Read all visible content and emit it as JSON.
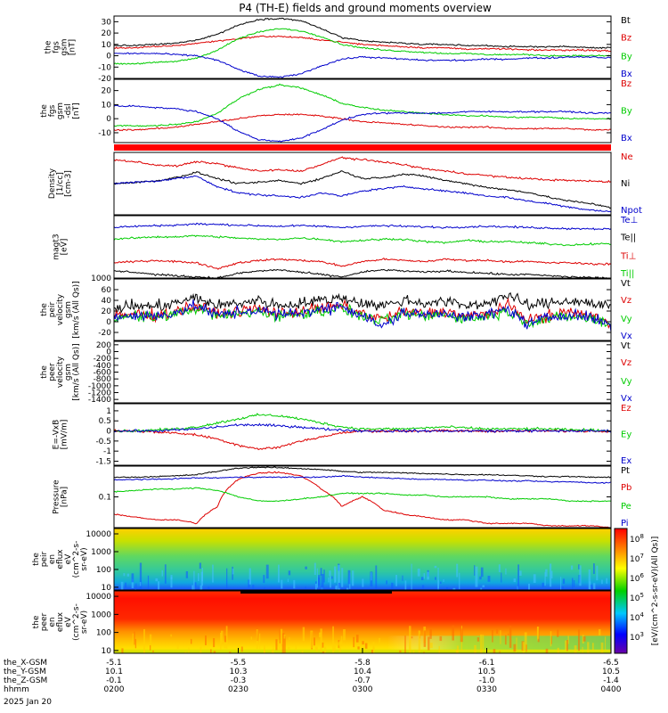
{
  "title": "P4 (TH-E) fields and ground moments overview",
  "panels": [
    {
      "id": "fgs-gsm",
      "ylabel_lines": [
        "the",
        "fgs",
        "gsm",
        "[nT]"
      ],
      "ylim": [
        -20,
        35
      ],
      "ticks": [
        -20,
        -10,
        0,
        10,
        20,
        30
      ],
      "series": [
        {
          "name": "Bt",
          "color": "#000000",
          "y": [
            9,
            9,
            10,
            11,
            14,
            19,
            27,
            32,
            33,
            31,
            24,
            16,
            13,
            12,
            11,
            10,
            10,
            9,
            9,
            8,
            8,
            8,
            8,
            7,
            7
          ]
        },
        {
          "name": "Bz",
          "color": "#dd0000",
          "y": [
            7,
            7,
            8,
            9,
            11,
            13,
            15,
            17,
            17,
            16,
            14,
            12,
            10,
            9,
            8,
            7,
            7,
            6,
            6,
            6,
            5,
            5,
            5,
            5,
            4
          ]
        },
        {
          "name": "By",
          "color": "#00cc00",
          "y": [
            -7,
            -7,
            -6,
            -5,
            -2,
            5,
            15,
            21,
            24,
            22,
            17,
            10,
            7,
            5,
            4,
            3,
            2,
            2,
            1,
            1,
            1,
            0,
            0,
            0,
            0
          ]
        },
        {
          "name": "Bx",
          "color": "#0000cc",
          "y": [
            2,
            2,
            2,
            1,
            0,
            -4,
            -12,
            -18,
            -19,
            -16,
            -9,
            -3,
            -1,
            -2,
            -3,
            -4,
            -4,
            -4,
            -3,
            -3,
            -2,
            -2,
            -1,
            -1,
            -2
          ]
        }
      ]
    },
    {
      "id": "fgs-gsm-dsl",
      "ylabel_lines": [
        "the",
        "fgs",
        "gsm",
        "-dsl",
        "[nT]"
      ],
      "ylim": [
        -17,
        28
      ],
      "ticks": [
        -10,
        0,
        10,
        20
      ],
      "series": [
        {
          "name": "Bz",
          "color": "#dd0000",
          "y": [
            -8,
            -8,
            -7,
            -6,
            -4,
            -2,
            0,
            2,
            3,
            3,
            2,
            0,
            -2,
            -3,
            -4,
            -5,
            -6,
            -6,
            -6,
            -7,
            -7,
            -7,
            -7,
            -8,
            -8
          ]
        },
        {
          "name": "By",
          "color": "#00cc00",
          "y": [
            -5,
            -5,
            -5,
            -4,
            -2,
            4,
            14,
            21,
            24,
            22,
            17,
            11,
            8,
            6,
            5,
            4,
            3,
            2,
            2,
            1,
            1,
            1,
            0,
            0,
            0
          ]
        },
        {
          "name": "Bx",
          "color": "#0000cc",
          "y": [
            9,
            9,
            8,
            7,
            5,
            0,
            -9,
            -15,
            -16,
            -14,
            -8,
            -1,
            3,
            4,
            4,
            4,
            4,
            5,
            5,
            5,
            5,
            5,
            5,
            4,
            4
          ]
        }
      ]
    },
    {
      "id": "density",
      "ylabel_lines": [
        "Density",
        "[1/cc]",
        "[cm-3]"
      ],
      "ylim": [
        0,
        10
      ],
      "ticks": [],
      "series": [
        {
          "name": "Ne",
          "color": "#dd0000",
          "y": [
            8.8,
            8.5,
            8.0,
            7.8,
            8.5,
            8.2,
            7.5,
            7.0,
            7.2,
            7.0,
            8.0,
            9.2,
            8.8,
            8.5,
            8.0,
            7.4,
            7.0,
            6.6,
            6.3,
            6.0,
            5.8,
            5.6,
            5.5,
            5.4,
            5.3
          ]
        },
        {
          "name": "Ni",
          "color": "#000000",
          "y": [
            5.0,
            5.2,
            5.4,
            6.0,
            6.8,
            5.8,
            5.0,
            5.2,
            5.5,
            5.0,
            5.8,
            7.0,
            5.8,
            6.0,
            6.5,
            6.2,
            5.5,
            5.0,
            4.4,
            4.0,
            3.6,
            2.8,
            2.2,
            1.8,
            1.2
          ]
        },
        {
          "name": "Npot",
          "color": "#0000cc",
          "y": [
            5.0,
            5.2,
            5.4,
            5.8,
            6.2,
            4.5,
            3.5,
            3.2,
            3.0,
            2.8,
            3.5,
            3.0,
            3.8,
            4.2,
            4.5,
            4.2,
            3.8,
            3.5,
            3.0,
            2.8,
            2.2,
            1.8,
            1.2,
            0.8,
            0.5
          ]
        }
      ]
    },
    {
      "id": "temperature",
      "ylabel_lines": [
        "magt3",
        "[eV]"
      ],
      "ylim": [
        900,
        6200
      ],
      "ticks": [
        1000
      ],
      "tick_positions": [
        0.0
      ],
      "series": [
        {
          "name": "Te⊥",
          "color": "#0000cc",
          "y": [
            5200,
            5300,
            5350,
            5400,
            5500,
            5450,
            5400,
            5350,
            5300,
            5350,
            5300,
            5200,
            5300,
            5350,
            5300,
            5250,
            5200,
            5250,
            5300,
            5250,
            5200,
            5150,
            5100,
            5100,
            5050
          ]
        },
        {
          "name": "Te||",
          "color": "#000000",
          "y": [
            1500,
            1400,
            1200,
            1100,
            1000,
            900,
            1300,
            1500,
            1600,
            1400,
            1200,
            1000,
            1400,
            1600,
            1500,
            1400,
            1500,
            1400,
            1300,
            1200,
            1200,
            1100,
            1000,
            950,
            900
          ]
        },
        {
          "name": "Ti⊥",
          "color": "#dd0000",
          "y": [
            2200,
            2300,
            2400,
            2300,
            2200,
            1700,
            2200,
            2400,
            2500,
            2400,
            2300,
            1900,
            2300,
            2500,
            2400,
            2300,
            2500,
            2400,
            2400,
            2300,
            2300,
            2200,
            2200,
            2100,
            2100
          ]
        },
        {
          "name": "Ti||",
          "color": "#00cc00",
          "y": [
            4200,
            4300,
            4400,
            4400,
            4500,
            4400,
            4300,
            4200,
            4200,
            4300,
            4200,
            4000,
            4100,
            4200,
            4200,
            4000,
            3900,
            4100,
            4000,
            4000,
            3900,
            3800,
            3700,
            3800,
            3800
          ]
        }
      ]
    },
    {
      "id": "peir-velocity",
      "ylabel_lines": [
        "the",
        "peir",
        "velocity",
        "gsm",
        "[km/s (All Qs)]"
      ],
      "ylim": [
        -35,
        80
      ],
      "ticks": [
        -20,
        0,
        20,
        40,
        60
      ],
      "series": [
        {
          "name": "Vt",
          "color": "#000000",
          "y": [
            25,
            30,
            28,
            35,
            45,
            30,
            35,
            40,
            30,
            35,
            40,
            45,
            35,
            30,
            40,
            35,
            38,
            30,
            35,
            50,
            30,
            35,
            40,
            35,
            30
          ]
        },
        {
          "name": "Vz",
          "color": "#dd0000",
          "y": [
            10,
            15,
            12,
            20,
            30,
            15,
            20,
            25,
            15,
            20,
            25,
            30,
            15,
            5,
            20,
            15,
            20,
            10,
            15,
            30,
            5,
            10,
            20,
            10,
            0
          ]
        },
        {
          "name": "Vy",
          "color": "#00cc00",
          "y": [
            5,
            10,
            8,
            15,
            25,
            10,
            15,
            20,
            10,
            15,
            20,
            25,
            10,
            0,
            15,
            10,
            15,
            5,
            10,
            20,
            0,
            5,
            10,
            5,
            -5
          ]
        },
        {
          "name": "Vx",
          "color": "#0000cc",
          "y": [
            10,
            12,
            10,
            18,
            30,
            12,
            18,
            22,
            12,
            18,
            22,
            30,
            12,
            -10,
            18,
            12,
            18,
            8,
            12,
            25,
            -5,
            8,
            15,
            8,
            -5
          ]
        }
      ]
    },
    {
      "id": "peer-velocity",
      "ylabel_lines": [
        "the",
        "peer",
        "velocity",
        "gsm",
        "[km/s (All Qs)]"
      ],
      "ylim": [
        -1500,
        300
      ],
      "ticks": [
        -1400,
        -1200,
        -1000,
        -800,
        -600,
        -400,
        -200,
        0,
        200
      ],
      "series": [
        {
          "name": "Vt",
          "color": "#000000",
          "y": []
        },
        {
          "name": "Vz",
          "color": "#dd0000",
          "y": []
        },
        {
          "name": "Vy",
          "color": "#00cc00",
          "y": []
        },
        {
          "name": "Vx",
          "color": "#0000cc",
          "y": []
        }
      ]
    },
    {
      "id": "efield",
      "ylabel_lines": [
        "E=-VxB",
        "[mV/m]"
      ],
      "ylim": [
        -1.7,
        1.35
      ],
      "ticks": [
        -1.5,
        -1.0,
        -0.5,
        0.0,
        0.5,
        1.0
      ],
      "series": [
        {
          "name": "Ez",
          "color": "#dd0000",
          "y": [
            0.0,
            0.0,
            -0.05,
            -0.1,
            -0.2,
            -0.4,
            -0.7,
            -0.9,
            -0.8,
            -0.5,
            -0.3,
            -0.1,
            0.0,
            0.0,
            0.0,
            0.0,
            0.0,
            0.0,
            0.0,
            0.0,
            0.0,
            0.0,
            0.0,
            0.0,
            0.0
          ]
        },
        {
          "name": "Ey",
          "color": "#00cc00",
          "y": [
            0.0,
            0.0,
            0.05,
            0.1,
            0.2,
            0.4,
            0.6,
            0.8,
            0.75,
            0.6,
            0.4,
            0.2,
            0.1,
            0.1,
            0.1,
            0.15,
            0.2,
            0.15,
            0.1,
            0.1,
            0.1,
            0.1,
            0.05,
            0.05,
            0.0
          ]
        },
        {
          "name": "Ex",
          "color": "#0000cc",
          "y": [
            0.0,
            0.0,
            0.0,
            0.05,
            0.1,
            0.2,
            0.3,
            0.3,
            0.25,
            0.2,
            0.1,
            0.05,
            0.0,
            0.0,
            0.0,
            0.0,
            0.0,
            0.0,
            0.0,
            0.0,
            0.0,
            0.0,
            0.0,
            0.0,
            0.0
          ]
        }
      ]
    },
    {
      "id": "pressure",
      "ylabel_lines": [
        "Pressure",
        "[nPa]"
      ],
      "ylim": [
        0.02,
        0.5
      ],
      "log": true,
      "ticks": [
        0.1
      ],
      "series": [
        {
          "name": "Pt",
          "color": "#000000",
          "y": [
            0.28,
            0.28,
            0.29,
            0.3,
            0.32,
            0.38,
            0.45,
            0.47,
            0.46,
            0.44,
            0.42,
            0.38,
            0.36,
            0.36,
            0.35,
            0.34,
            0.33,
            0.32,
            0.32,
            0.31,
            0.3,
            0.29,
            0.29,
            0.28,
            0.28
          ]
        },
        {
          "name": "Pb",
          "color": "#dd0000",
          "y": [
            0.04,
            0.035,
            0.03,
            0.03,
            0.025,
            0.06,
            0.25,
            0.35,
            0.36,
            0.3,
            0.15,
            0.06,
            0.1,
            0.05,
            0.04,
            0.035,
            0.03,
            0.03,
            0.025,
            0.025,
            0.025,
            0.022,
            0.022,
            0.022,
            0.02
          ]
        },
        {
          "name": "Pe",
          "color": "#00cc00",
          "y": [
            0.13,
            0.14,
            0.15,
            0.15,
            0.16,
            0.14,
            0.1,
            0.08,
            0.08,
            0.09,
            0.1,
            0.12,
            0.12,
            0.12,
            0.11,
            0.11,
            0.1,
            0.1,
            0.1,
            0.09,
            0.09,
            0.09,
            0.08,
            0.08,
            0.08
          ]
        },
        {
          "name": "Pi",
          "color": "#0000cc",
          "y": [
            0.24,
            0.25,
            0.25,
            0.26,
            0.27,
            0.27,
            0.28,
            0.28,
            0.28,
            0.28,
            0.28,
            0.3,
            0.28,
            0.27,
            0.26,
            0.25,
            0.25,
            0.24,
            0.24,
            0.23,
            0.23,
            0.22,
            0.22,
            0.21,
            0.21
          ]
        }
      ]
    },
    {
      "id": "peir-eflux",
      "ylabel_lines": [
        "the",
        "peir",
        "en",
        "eflux",
        "eV",
        "(cm^2-s-",
        "sr-eV)"
      ],
      "type": "heatmap",
      "ticks": [
        10,
        100,
        1000,
        10000
      ],
      "colorbar_label": "[eV/(cm^2-s-sr-eV)(All Qs)]"
    },
    {
      "id": "peer-eflux",
      "ylabel_lines": [
        "the",
        "peer",
        "en",
        "eflux",
        "eV",
        "(cm^2-s-",
        "sr-eV)"
      ],
      "type": "heatmap",
      "ticks": [
        10,
        100,
        1000,
        10000
      ],
      "colorbar_label": "[eV/(cm^2-s-sr-eV)(All Qs)]"
    }
  ],
  "colorbar": {
    "exponents": [
      "3",
      "4",
      "5",
      "6",
      "7",
      "8"
    ],
    "base": "10",
    "label": "[eV/(cm^2-s-sr-eV)(All Qs)]"
  },
  "chart_data": {
    "type": "line",
    "title": "P4 (TH-E) fields and ground moments overview",
    "x": [
      "0200",
      "0230",
      "0300",
      "0330",
      "0400"
    ],
    "xlabel": "hhmm",
    "date": "2025 Jan 20"
  },
  "x_axis": {
    "tick_positions": [
      0,
      0.25,
      0.5,
      0.75,
      1.0
    ],
    "rows": [
      {
        "label": "the_X-GSM",
        "values": [
          "-5.1",
          "-5.5",
          "-5.8",
          "-6.1",
          "-6.5"
        ]
      },
      {
        "label": "the_Y-GSM",
        "values": [
          "10.1",
          "10.3",
          "10.4",
          "10.5",
          "10.5"
        ]
      },
      {
        "label": "the_Z-GSM",
        "values": [
          "-0.1",
          "-0.3",
          "-0.7",
          "-1.0",
          "-1.4"
        ]
      },
      {
        "label": "hhmm",
        "values": [
          "0200",
          "0230",
          "0300",
          "0330",
          "0400"
        ]
      }
    ],
    "date": "2025 Jan 20"
  }
}
